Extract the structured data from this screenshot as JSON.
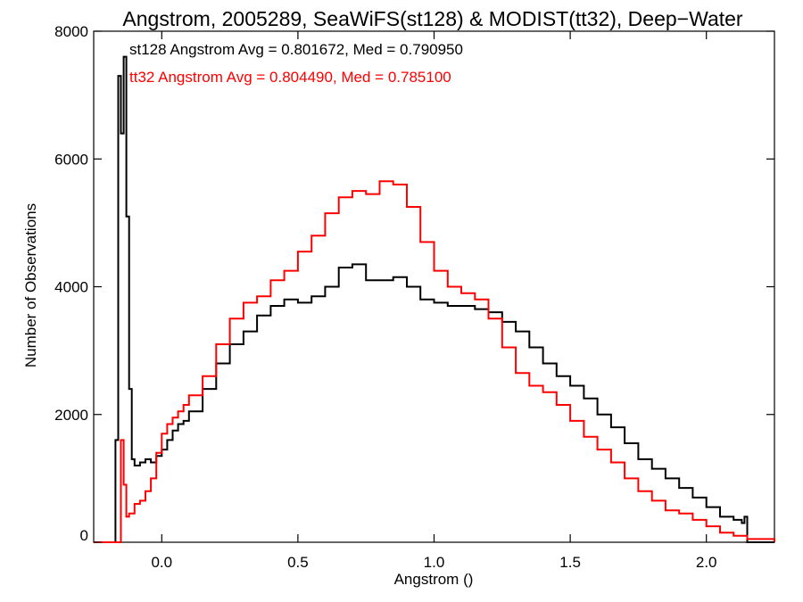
{
  "chart_data": {
    "type": "line",
    "title": "Angstrom, 2005289, SeaWiFS(st128) & MODIST(tt32), Deep−Water",
    "xlabel": "Angstrom ()",
    "ylabel": "Number of Observations",
    "xlim": [
      -0.25,
      2.25
    ],
    "ylim": [
      0,
      8000
    ],
    "x_ticks": [
      0.0,
      0.5,
      1.0,
      1.5,
      2.0
    ],
    "x_tick_labels": [
      "0.0",
      "0.5",
      "1.0",
      "1.5",
      "2.0"
    ],
    "y_ticks": [
      0,
      2000,
      4000,
      6000,
      8000
    ],
    "y_tick_labels": [
      "0",
      "2000",
      "4000",
      "6000",
      "8000"
    ],
    "grid": false,
    "annotations": [
      {
        "text": "st128 Angstrom Avg = 0.801672, Med = 0.790950",
        "color": "#000000"
      },
      {
        "text": "tt32 Angstrom Avg = 0.804490, Med = 0.785100",
        "color": "#ff0000"
      }
    ],
    "series": [
      {
        "color": "#000000",
        "x": [
          -0.25,
          -0.18,
          -0.17,
          -0.16,
          -0.15,
          -0.14,
          -0.13,
          -0.12,
          -0.11,
          -0.1,
          -0.08,
          -0.06,
          -0.04,
          -0.02,
          0.0,
          0.02,
          0.04,
          0.06,
          0.08,
          0.1,
          0.15,
          0.2,
          0.25,
          0.3,
          0.35,
          0.4,
          0.45,
          0.5,
          0.55,
          0.6,
          0.65,
          0.7,
          0.75,
          0.8,
          0.85,
          0.9,
          0.95,
          1.0,
          1.05,
          1.1,
          1.15,
          1.2,
          1.25,
          1.3,
          1.35,
          1.4,
          1.45,
          1.5,
          1.55,
          1.6,
          1.65,
          1.7,
          1.75,
          1.8,
          1.85,
          1.9,
          1.95,
          2.0,
          2.05,
          2.1,
          2.13,
          2.14,
          2.15,
          2.25
        ],
        "values": [
          0,
          0,
          1600,
          7300,
          6400,
          7600,
          5100,
          2400,
          1300,
          1200,
          1250,
          1300,
          1250,
          1350,
          1450,
          1600,
          1750,
          1850,
          1900,
          2050,
          2400,
          2800,
          3100,
          3300,
          3550,
          3700,
          3800,
          3750,
          3850,
          4000,
          4300,
          4350,
          4100,
          4100,
          4150,
          4000,
          3800,
          3750,
          3700,
          3700,
          3650,
          3600,
          3450,
          3300,
          3050,
          2800,
          2600,
          2450,
          2250,
          2000,
          1800,
          1550,
          1300,
          1150,
          1000,
          850,
          700,
          550,
          400,
          350,
          300,
          400,
          0,
          0
        ]
      },
      {
        "color": "#ff0000",
        "x": [
          -0.25,
          -0.16,
          -0.15,
          -0.14,
          -0.13,
          -0.12,
          -0.1,
          -0.08,
          -0.06,
          -0.04,
          -0.02,
          0.0,
          0.02,
          0.04,
          0.06,
          0.08,
          0.1,
          0.15,
          0.2,
          0.25,
          0.3,
          0.35,
          0.4,
          0.45,
          0.5,
          0.55,
          0.6,
          0.65,
          0.7,
          0.75,
          0.8,
          0.85,
          0.9,
          0.95,
          1.0,
          1.05,
          1.1,
          1.15,
          1.2,
          1.25,
          1.3,
          1.35,
          1.4,
          1.45,
          1.5,
          1.55,
          1.6,
          1.65,
          1.7,
          1.75,
          1.8,
          1.85,
          1.9,
          1.95,
          2.0,
          2.05,
          2.1,
          2.15,
          2.25
        ],
        "values": [
          0,
          0,
          1600,
          900,
          400,
          450,
          600,
          650,
          800,
          1000,
          1400,
          1700,
          1850,
          1950,
          2050,
          2150,
          2300,
          2600,
          3100,
          3500,
          3750,
          3850,
          4100,
          4250,
          4550,
          4800,
          5150,
          5400,
          5500,
          5450,
          5650,
          5600,
          5250,
          4700,
          4250,
          4000,
          3900,
          3800,
          3500,
          3050,
          2650,
          2450,
          2350,
          2150,
          1900,
          1650,
          1450,
          1250,
          1000,
          800,
          650,
          500,
          450,
          350,
          250,
          150,
          100,
          50,
          0
        ]
      }
    ]
  }
}
